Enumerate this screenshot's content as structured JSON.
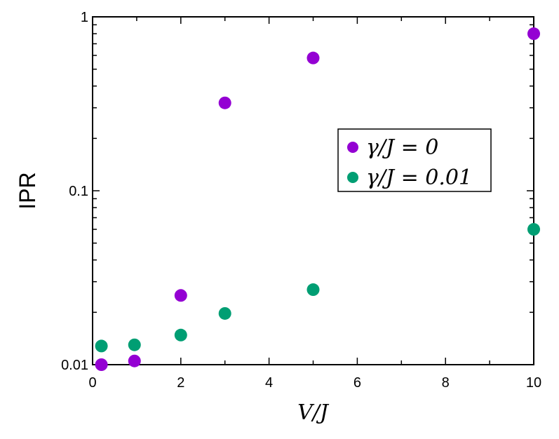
{
  "chart_data": {
    "type": "scatter",
    "title": "",
    "xlabel": "V/J",
    "ylabel": "IPR",
    "xlim": [
      0,
      10
    ],
    "ylim": [
      0.01,
      1
    ],
    "yscale": "log",
    "x_ticks": [
      "0",
      "2",
      "4",
      "6",
      "8",
      "10"
    ],
    "y_ticks": [
      "0.01",
      "0.1",
      "1"
    ],
    "grid": false,
    "legend_position": "center-right",
    "series": [
      {
        "name": "γ/J = 0",
        "color": "#9400D3",
        "x": [
          0.2,
          0.95,
          2,
          3,
          5,
          10
        ],
        "y": [
          0.01,
          0.0105,
          0.025,
          0.32,
          0.58,
          0.8
        ]
      },
      {
        "name": "γ/J = 0.01",
        "color": "#009E73",
        "x": [
          0.2,
          0.95,
          2,
          3,
          5,
          10
        ],
        "y": [
          0.0128,
          0.013,
          0.0148,
          0.0197,
          0.027,
          0.06
        ]
      }
    ]
  }
}
